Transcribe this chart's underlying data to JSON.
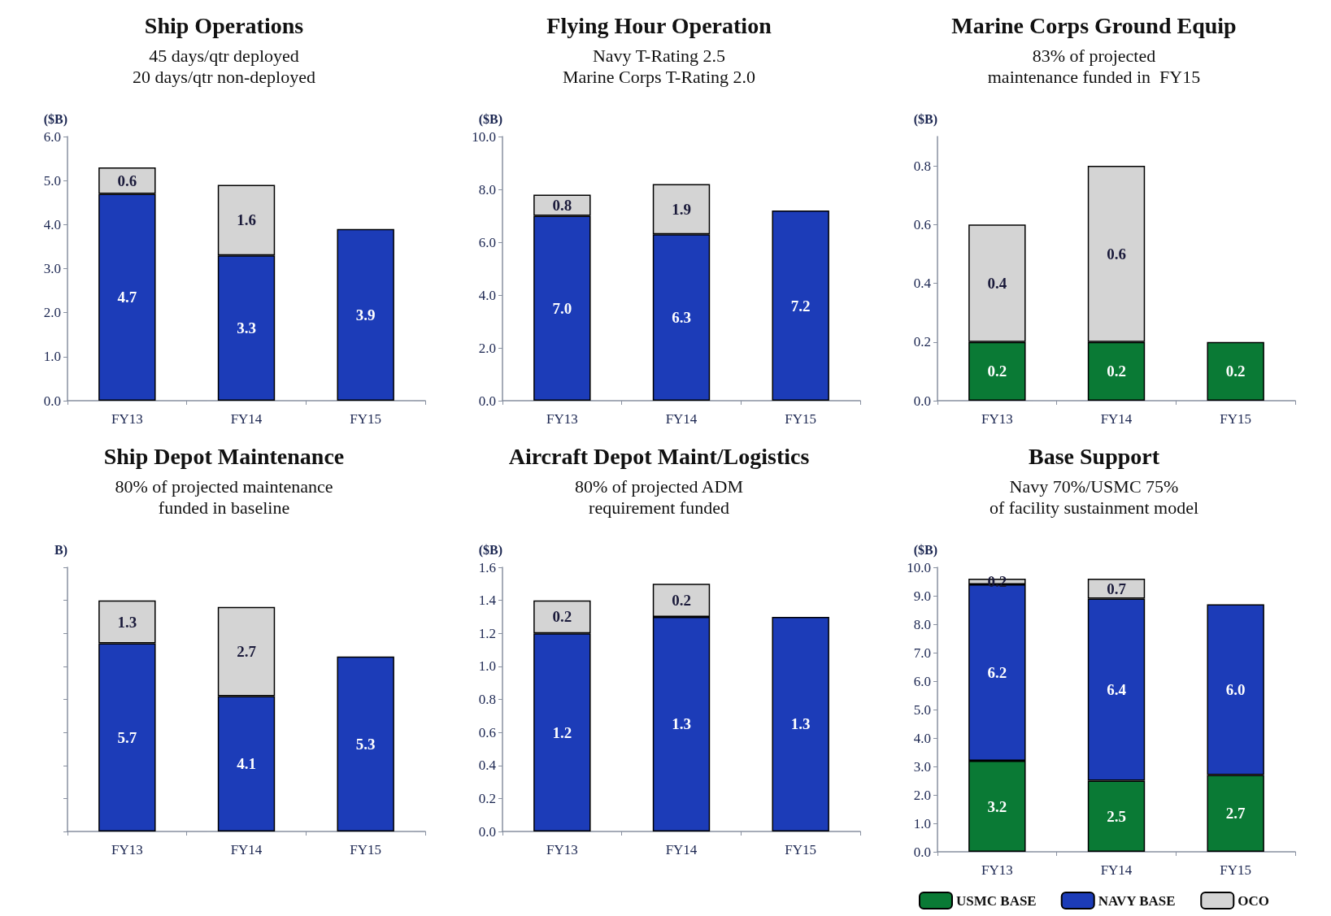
{
  "chart_data": [
    {
      "type": "bar",
      "title": "Ship Operations",
      "subtitle": "45 days/qtr deployed\n20 days/qtr non-deployed",
      "ylabel": "($B)",
      "categories": [
        "FY13",
        "FY14",
        "FY15"
      ],
      "stacked": true,
      "ylim": [
        0,
        6
      ],
      "yticks": [
        {
          "value": 0,
          "label": "0.0"
        },
        {
          "value": 1,
          "label": "1.0"
        },
        {
          "value": 2,
          "label": "2.0"
        },
        {
          "value": 3,
          "label": "3.0"
        },
        {
          "value": 4,
          "label": "4.0"
        },
        {
          "value": 5,
          "label": "5.0"
        },
        {
          "value": 6,
          "label": "6.0"
        }
      ],
      "grid": false,
      "legend": false,
      "series": [
        {
          "color": "#1c3cb8",
          "values": [
            4.7,
            3.3,
            3.9
          ],
          "value_labels": [
            "4.7",
            "3.3",
            "3.9"
          ]
        },
        {
          "color": "#d4d4d4",
          "values": [
            0.6,
            1.6,
            null
          ],
          "value_labels": [
            "0.6",
            "1.6",
            null
          ]
        }
      ]
    },
    {
      "type": "bar",
      "title": "Flying Hour Operation",
      "subtitle": "Navy T-Rating 2.5\nMarine Corps T-Rating 2.0",
      "ylabel": "($B)",
      "categories": [
        "FY13",
        "FY14",
        "FY15"
      ],
      "stacked": true,
      "ylim": [
        0,
        10
      ],
      "yticks": [
        {
          "value": 0,
          "label": "0.0"
        },
        {
          "value": 2,
          "label": "2.0"
        },
        {
          "value": 4,
          "label": "4.0"
        },
        {
          "value": 6,
          "label": "6.0"
        },
        {
          "value": 8,
          "label": "8.0"
        },
        {
          "value": 10,
          "label": "10.0"
        }
      ],
      "grid": false,
      "legend": false,
      "series": [
        {
          "color": "#1c3cb8",
          "values": [
            7.0,
            6.3,
            7.2
          ],
          "value_labels": [
            "7.0",
            "6.3",
            "7.2"
          ]
        },
        {
          "color": "#d4d4d4",
          "values": [
            0.8,
            1.9,
            null
          ],
          "value_labels": [
            "0.8",
            "1.9",
            null
          ]
        }
      ]
    },
    {
      "type": "bar",
      "title": "Marine Corps Ground Equip",
      "subtitle": "83% of projected\nmaintenance funded in  FY15",
      "ylabel": "($B)",
      "categories": [
        "FY13",
        "FY14",
        "FY15"
      ],
      "stacked": true,
      "ylim": [
        0,
        0.9
      ],
      "yticks": [
        {
          "value": 0,
          "label": "0.0"
        },
        0.2,
        0.4,
        0.6,
        0.8
      ],
      "grid": false,
      "legend": false,
      "series": [
        {
          "color": "#0a7a35",
          "values": [
            0.2,
            0.2,
            0.2
          ],
          "value_labels": [
            "0.2",
            "0.2",
            "0.2"
          ]
        },
        {
          "color": "#d4d4d4",
          "values": [
            0.4,
            0.6,
            null
          ],
          "value_labels": [
            "0.4",
            "0.6",
            null
          ]
        }
      ]
    },
    {
      "type": "bar",
      "title": "Ship Depot Maintenance",
      "subtitle": "80% of projected maintenance\nfunded in baseline",
      "ylabel": "B)",
      "categories": [
        "FY13",
        "FY14",
        "FY15"
      ],
      "stacked": true,
      "ylim": [
        0,
        8
      ],
      "yticks": [
        {
          "value": 0,
          "label": null
        },
        {
          "value": 1,
          "label": null
        },
        {
          "value": 2,
          "label": null
        },
        {
          "value": 3,
          "label": null
        },
        {
          "value": 4,
          "label": null
        },
        {
          "value": 5,
          "label": null
        },
        {
          "value": 6,
          "label": null
        },
        {
          "value": 7,
          "label": null
        },
        {
          "value": 8,
          "label": null
        }
      ],
      "tick_labels": "x",
      "grid": false,
      "legend": false,
      "series": [
        {
          "color": "#1c3cb8",
          "values": [
            5.7,
            4.1,
            5.3
          ],
          "value_labels": [
            "5.7",
            "4.1",
            "5.3"
          ]
        },
        {
          "color": "#d4d4d4",
          "values": [
            1.3,
            2.7,
            null
          ],
          "value_labels": [
            "1.3",
            "2.7",
            null
          ]
        }
      ]
    },
    {
      "type": "bar",
      "title": "Aircraft Depot Maint/Logistics",
      "subtitle": "80% of projected ADM\nrequirement funded",
      "ylabel": "($B)",
      "categories": [
        "FY13",
        "FY14",
        "FY15"
      ],
      "stacked": true,
      "ylim": [
        0,
        1.6
      ],
      "yticks": [
        {
          "value": 0,
          "label": "0.0"
        },
        0.2,
        0.4,
        0.6,
        0.8,
        {
          "value": 1,
          "label": "1.0"
        },
        1.2,
        1.4,
        1.6
      ],
      "grid": false,
      "legend": false,
      "series": [
        {
          "color": "#1c3cb8",
          "values": [
            1.2,
            1.3,
            1.3
          ],
          "value_labels": [
            "1.2",
            "1.3",
            "1.3"
          ]
        },
        {
          "color": "#d4d4d4",
          "values": [
            0.2,
            0.2,
            null
          ],
          "value_labels": [
            "0.2",
            "0.2",
            null
          ]
        }
      ]
    },
    {
      "type": "bar",
      "title": "Base Support",
      "subtitle": "Navy 70%/USMC 75%\nof facility sustainment model",
      "ylabel": "($B)",
      "categories": [
        "FY13",
        "FY14",
        "FY15"
      ],
      "stacked": true,
      "ylim": [
        0,
        10
      ],
      "yticks": [
        {
          "value": 0,
          "label": "0.0"
        },
        {
          "value": 1,
          "label": "1.0"
        },
        {
          "value": 2,
          "label": "2.0"
        },
        {
          "value": 3,
          "label": "3.0"
        },
        {
          "value": 4,
          "label": "4.0"
        },
        {
          "value": 5,
          "label": "5.0"
        },
        {
          "value": 6,
          "label": "6.0"
        },
        {
          "value": 7,
          "label": "7.0"
        },
        {
          "value": 8,
          "label": "8.0"
        },
        {
          "value": 9,
          "label": "9.0"
        },
        {
          "value": 10,
          "label": "10.0"
        }
      ],
      "grid": false,
      "legend": "bottom",
      "series": [
        {
          "name": "USMC BASE",
          "color": "#0a7a35",
          "values": [
            3.2,
            2.5,
            2.7
          ],
          "value_labels": [
            "3.2",
            "2.5",
            "2.7"
          ]
        },
        {
          "name": "NAVY BASE",
          "color": "#1c3cb8",
          "values": [
            6.2,
            6.4,
            6.0
          ],
          "value_labels": [
            "6.2",
            "6.4",
            "6.0"
          ]
        },
        {
          "name": "OCO",
          "color": "#d4d4d4",
          "values": [
            0.2,
            0.7,
            null
          ],
          "value_labels": [
            "0.2",
            "0.7",
            null
          ]
        }
      ]
    }
  ]
}
